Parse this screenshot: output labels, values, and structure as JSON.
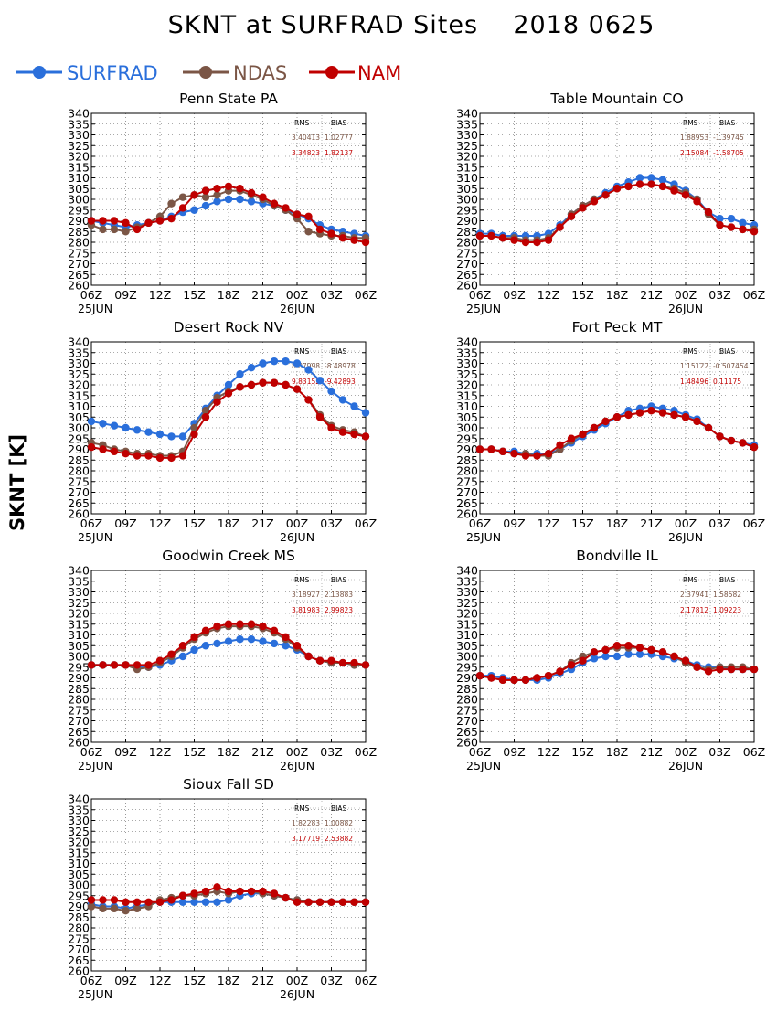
{
  "title": "SKNT at SURFRAD Sites    2018 0625",
  "ylabel": "SKNT [K]",
  "colors": {
    "SURFRAD": "#2a6fdb",
    "NDAS": "#7b5646",
    "NAM": "#c00000"
  },
  "legend": [
    {
      "name": "SURFRAD",
      "color": "#2a6fdb"
    },
    {
      "name": "NDAS",
      "color": "#7b5646"
    },
    {
      "name": "NAM",
      "color": "#c00000"
    }
  ],
  "x_ticks": [
    "06Z",
    "09Z",
    "12Z",
    "15Z",
    "18Z",
    "21Z",
    "00Z",
    "03Z",
    "06Z"
  ],
  "date_labels": [
    "25JUN",
    "26JUN"
  ],
  "y_ticks": [
    "260",
    "265",
    "270",
    "275",
    "280",
    "285",
    "290",
    "295",
    "300",
    "305",
    "310",
    "315",
    "320",
    "325",
    "330",
    "335",
    "340"
  ],
  "table_headers": {
    "rms": "RMS",
    "bias": "BIAS"
  },
  "chart_data": [
    {
      "type": "line",
      "title": "Penn State PA",
      "ylim": [
        260,
        340
      ],
      "xlim": [
        0,
        24
      ],
      "grid": true,
      "x": [
        0,
        1,
        2,
        3,
        4,
        5,
        6,
        7,
        8,
        9,
        10,
        11,
        12,
        13,
        14,
        15,
        16,
        17,
        18,
        19,
        20,
        21,
        22,
        23,
        24
      ],
      "series": [
        {
          "name": "SURFRAD",
          "values": [
            290,
            289,
            288,
            287,
            288,
            289,
            290,
            292,
            294,
            295,
            297,
            299,
            300,
            300,
            299,
            298,
            297,
            295,
            293,
            291,
            288,
            286,
            285,
            284,
            283
          ]
        },
        {
          "name": "NDAS",
          "values": [
            288,
            286,
            286,
            285,
            287,
            289,
            292,
            298,
            301,
            302,
            301,
            302,
            304,
            304,
            302,
            300,
            297,
            295,
            291,
            285,
            284,
            283,
            283,
            282,
            282
          ]
        },
        {
          "name": "NAM",
          "values": [
            290,
            290,
            290,
            289,
            286,
            289,
            290,
            291,
            296,
            302,
            304,
            305,
            306,
            305,
            303,
            301,
            298,
            296,
            293,
            292,
            286,
            284,
            282,
            281,
            280
          ]
        }
      ],
      "stats": [
        {
          "name": "NDAS",
          "rms": "3.40413",
          "bias": "1.02777"
        },
        {
          "name": "NAM",
          "rms": "3.34823",
          "bias": "1.82137"
        }
      ]
    },
    {
      "type": "line",
      "title": "Table Mountain CO",
      "ylim": [
        260,
        340
      ],
      "xlim": [
        0,
        24
      ],
      "grid": true,
      "x": [
        0,
        1,
        2,
        3,
        4,
        5,
        6,
        7,
        8,
        9,
        10,
        11,
        12,
        13,
        14,
        15,
        16,
        17,
        18,
        19,
        20,
        21,
        22,
        23,
        24
      ],
      "series": [
        {
          "name": "SURFRAD",
          "values": [
            284,
            284,
            283,
            283,
            283,
            283,
            284,
            288,
            293,
            297,
            300,
            303,
            306,
            308,
            310,
            310,
            309,
            307,
            304,
            300,
            294,
            291,
            291,
            289,
            288
          ]
        },
        {
          "name": "NDAS",
          "values": [
            283,
            283,
            282,
            282,
            281,
            281,
            282,
            287,
            293,
            297,
            300,
            302,
            305,
            306,
            307,
            307,
            306,
            305,
            303,
            300,
            293,
            288,
            287,
            286,
            286
          ]
        },
        {
          "name": "NAM",
          "values": [
            283,
            283,
            282,
            281,
            280,
            280,
            281,
            287,
            292,
            296,
            299,
            302,
            305,
            306,
            307,
            307,
            306,
            304,
            302,
            299,
            294,
            288,
            287,
            286,
            285
          ]
        }
      ],
      "stats": [
        {
          "name": "NDAS",
          "rms": "1.88953",
          "bias": "-1.39745"
        },
        {
          "name": "NAM",
          "rms": "2.15084",
          "bias": "-1.58705"
        }
      ]
    },
    {
      "type": "line",
      "title": "Desert Rock NV",
      "ylim": [
        260,
        340
      ],
      "xlim": [
        0,
        24
      ],
      "grid": true,
      "x": [
        0,
        1,
        2,
        3,
        4,
        5,
        6,
        7,
        8,
        9,
        10,
        11,
        12,
        13,
        14,
        15,
        16,
        17,
        18,
        19,
        20,
        21,
        22,
        23,
        24
      ],
      "series": [
        {
          "name": "SURFRAD",
          "values": [
            303,
            302,
            301,
            300,
            299,
            298,
            297,
            296,
            296,
            302,
            309,
            315,
            320,
            325,
            328,
            330,
            331,
            331,
            330,
            327,
            322,
            317,
            313,
            310,
            307
          ]
        },
        {
          "name": "NDAS",
          "values": [
            293,
            292,
            290,
            289,
            288,
            288,
            287,
            287,
            289,
            300,
            308,
            314,
            317,
            319,
            320,
            321,
            321,
            320,
            318,
            313,
            306,
            301,
            299,
            298,
            296
          ]
        },
        {
          "name": "NAM",
          "values": [
            291,
            290,
            289,
            288,
            287,
            287,
            286,
            286,
            287,
            297,
            305,
            312,
            316,
            319,
            320,
            321,
            321,
            320,
            318,
            313,
            305,
            300,
            298,
            297,
            296
          ]
        }
      ],
      "stats": [
        {
          "name": "NDAS",
          "rms": "8.87998",
          "bias": "-8.48978"
        },
        {
          "name": "NAM",
          "rms": "9.83152",
          "bias": "-9.42893"
        }
      ]
    },
    {
      "type": "line",
      "title": "Fort Peck MT",
      "ylim": [
        260,
        340
      ],
      "xlim": [
        0,
        24
      ],
      "grid": true,
      "x": [
        0,
        1,
        2,
        3,
        4,
        5,
        6,
        7,
        8,
        9,
        10,
        11,
        12,
        13,
        14,
        15,
        16,
        17,
        18,
        19,
        20,
        21,
        22,
        23,
        24
      ],
      "series": [
        {
          "name": "SURFRAD",
          "values": [
            290,
            290,
            289,
            289,
            288,
            288,
            288,
            290,
            293,
            296,
            299,
            302,
            305,
            308,
            309,
            310,
            309,
            308,
            306,
            304,
            300,
            296,
            294,
            293,
            292
          ]
        },
        {
          "name": "NDAS",
          "values": [
            290,
            290,
            289,
            288,
            288,
            287,
            287,
            290,
            294,
            297,
            300,
            303,
            305,
            306,
            307,
            308,
            307,
            306,
            305,
            303,
            300,
            296,
            294,
            293,
            291
          ]
        },
        {
          "name": "NAM",
          "values": [
            290,
            290,
            289,
            288,
            287,
            287,
            288,
            292,
            295,
            297,
            300,
            303,
            305,
            306,
            307,
            308,
            307,
            306,
            305,
            303,
            300,
            296,
            294,
            293,
            291
          ]
        }
      ],
      "stats": [
        {
          "name": "NDAS",
          "rms": "1.15122",
          "bias": "-0.507454"
        },
        {
          "name": "NAM",
          "rms": "1.48496",
          "bias": "0.11175"
        }
      ]
    },
    {
      "type": "line",
      "title": "Goodwin Creek MS",
      "ylim": [
        260,
        340
      ],
      "xlim": [
        0,
        24
      ],
      "grid": true,
      "x": [
        0,
        1,
        2,
        3,
        4,
        5,
        6,
        7,
        8,
        9,
        10,
        11,
        12,
        13,
        14,
        15,
        16,
        17,
        18,
        19,
        20,
        21,
        22,
        23,
        24
      ],
      "series": [
        {
          "name": "SURFRAD",
          "values": [
            296,
            296,
            296,
            296,
            295,
            295,
            296,
            298,
            300,
            303,
            305,
            306,
            307,
            308,
            308,
            307,
            306,
            305,
            303,
            300,
            298,
            297,
            297,
            296,
            296
          ]
        },
        {
          "name": "NDAS",
          "values": [
            296,
            296,
            296,
            296,
            294,
            295,
            297,
            300,
            304,
            308,
            311,
            313,
            314,
            314,
            314,
            313,
            311,
            308,
            304,
            300,
            298,
            297,
            297,
            296,
            296
          ]
        },
        {
          "name": "NAM",
          "values": [
            296,
            296,
            296,
            296,
            296,
            296,
            298,
            301,
            305,
            309,
            312,
            314,
            315,
            315,
            315,
            314,
            312,
            309,
            305,
            300,
            298,
            298,
            297,
            297,
            296
          ]
        }
      ],
      "stats": [
        {
          "name": "NDAS",
          "rms": "3.18927",
          "bias": "2.13883"
        },
        {
          "name": "NAM",
          "rms": "3.81983",
          "bias": "2.99823"
        }
      ]
    },
    {
      "type": "line",
      "title": "Bondville IL",
      "ylim": [
        260,
        340
      ],
      "xlim": [
        0,
        24
      ],
      "grid": true,
      "x": [
        0,
        1,
        2,
        3,
        4,
        5,
        6,
        7,
        8,
        9,
        10,
        11,
        12,
        13,
        14,
        15,
        16,
        17,
        18,
        19,
        20,
        21,
        22,
        23,
        24
      ],
      "series": [
        {
          "name": "SURFRAD",
          "values": [
            291,
            291,
            290,
            289,
            289,
            289,
            290,
            292,
            294,
            297,
            299,
            300,
            300,
            301,
            301,
            301,
            300,
            299,
            298,
            296,
            295,
            295,
            294,
            294,
            294
          ]
        },
        {
          "name": "NDAS",
          "values": [
            291,
            290,
            289,
            289,
            289,
            290,
            291,
            293,
            297,
            300,
            302,
            303,
            304,
            304,
            304,
            303,
            302,
            300,
            297,
            295,
            294,
            295,
            295,
            295,
            294
          ]
        },
        {
          "name": "NAM",
          "values": [
            291,
            290,
            289,
            289,
            289,
            290,
            291,
            293,
            296,
            298,
            302,
            303,
            305,
            305,
            304,
            303,
            302,
            300,
            298,
            295,
            293,
            294,
            294,
            294,
            294
          ]
        }
      ],
      "stats": [
        {
          "name": "NDAS",
          "rms": "2.37941",
          "bias": "1.58582"
        },
        {
          "name": "NAM",
          "rms": "2.17812",
          "bias": "1.09223"
        }
      ]
    },
    {
      "type": "line",
      "title": "Sioux Fall SD",
      "ylim": [
        260,
        340
      ],
      "xlim": [
        0,
        24
      ],
      "grid": true,
      "x": [
        0,
        1,
        2,
        3,
        4,
        5,
        6,
        7,
        8,
        9,
        10,
        11,
        12,
        13,
        14,
        15,
        16,
        17,
        18,
        19,
        20,
        21,
        22,
        23,
        24
      ],
      "series": [
        {
          "name": "SURFRAD",
          "values": [
            291,
            290,
            290,
            289,
            290,
            291,
            292,
            292,
            292,
            292,
            292,
            292,
            293,
            295,
            296,
            296,
            295,
            294,
            293,
            292,
            292,
            292,
            292,
            292,
            292
          ]
        },
        {
          "name": "NDAS",
          "values": [
            290,
            289,
            289,
            288,
            289,
            290,
            293,
            294,
            295,
            295,
            296,
            297,
            296,
            297,
            297,
            296,
            295,
            294,
            293,
            292,
            292,
            292,
            292,
            292,
            292
          ]
        },
        {
          "name": "NAM",
          "values": [
            293,
            293,
            293,
            292,
            292,
            292,
            292,
            293,
            295,
            296,
            297,
            299,
            297,
            297,
            297,
            297,
            296,
            294,
            292,
            292,
            292,
            292,
            292,
            292,
            292
          ]
        }
      ],
      "stats": [
        {
          "name": "NDAS",
          "rms": "1.82283",
          "bias": "1.00882"
        },
        {
          "name": "NAM",
          "rms": "3.17719",
          "bias": "2.53882"
        }
      ]
    }
  ]
}
